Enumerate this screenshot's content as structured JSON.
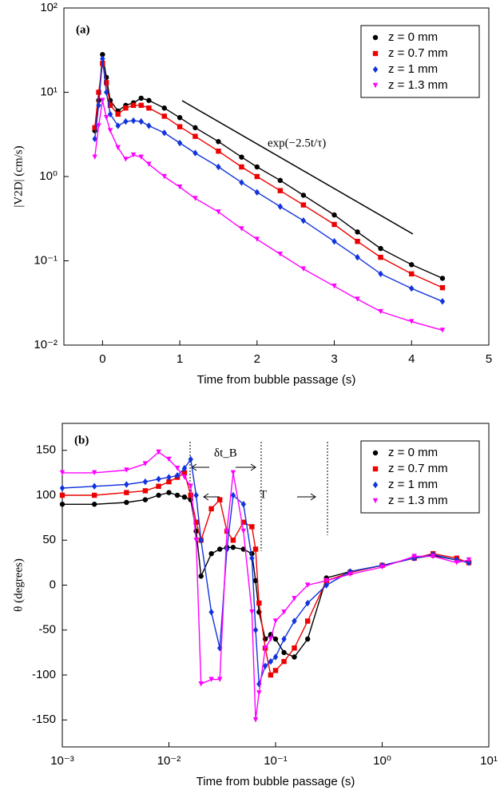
{
  "chart_data": [
    {
      "type": "line",
      "xlabel": "Time from bubble passage (s)",
      "ylabel": "|V2D| (cm/s)",
      "yscale": "log",
      "legend": "upper right",
      "annotations": [
        "(a)",
        "exp(−2.5t/τ)"
      ],
      "xlim": [
        -0.5,
        5
      ],
      "xticks": [
        0,
        1,
        2,
        3,
        4,
        5
      ],
      "ylim": [
        0.01,
        100
      ],
      "yticks": [
        {
          "value": 0.01,
          "label": "10⁻²"
        },
        {
          "value": 0.1,
          "label": "10⁻¹"
        },
        {
          "value": 1,
          "label": "10⁰"
        },
        {
          "value": 10,
          "label": "10¹"
        },
        {
          "value": 100,
          "label": "10²"
        }
      ],
      "x": [
        -0.1,
        -0.05,
        0,
        0.05,
        0.1,
        0.2,
        0.3,
        0.4,
        0.5,
        0.6,
        0.8,
        1.0,
        1.2,
        1.5,
        1.8,
        2.0,
        2.3,
        2.6,
        3.0,
        3.3,
        3.6,
        4.0,
        4.4
      ],
      "series": [
        {
          "name": "z = 0 mm",
          "color": "#000000",
          "marker": "circle",
          "values": [
            3.5,
            8,
            28,
            15,
            8,
            6,
            7,
            7.5,
            8.5,
            8,
            6.5,
            5,
            3.8,
            2.6,
            1.7,
            1.3,
            0.9,
            0.6,
            0.35,
            0.22,
            0.14,
            0.09,
            0.062
          ]
        },
        {
          "name": "z = 0.7 mm",
          "color": "#ee0000",
          "marker": "square",
          "values": [
            3.8,
            10,
            22,
            13,
            7,
            5.5,
            6.5,
            7,
            7,
            6.5,
            5.2,
            3.9,
            3,
            2,
            1.3,
            1,
            0.68,
            0.46,
            0.27,
            0.17,
            0.11,
            0.07,
            0.048
          ]
        },
        {
          "name": "z = 1 mm",
          "color": "#1133dd",
          "marker": "diamond",
          "values": [
            2.8,
            7,
            25,
            10,
            5.5,
            4,
            4.5,
            4.6,
            4.5,
            4,
            3.3,
            2.5,
            1.9,
            1.3,
            0.85,
            0.65,
            0.44,
            0.3,
            0.17,
            0.11,
            0.07,
            0.047,
            0.033
          ]
        },
        {
          "name": "z = 1.3 mm",
          "color": "#ff00ff",
          "marker": "triangle",
          "values": [
            1.7,
            4,
            8,
            5,
            3.5,
            2.2,
            1.6,
            1.8,
            1.7,
            1.4,
            1,
            0.75,
            0.55,
            0.38,
            0.24,
            0.18,
            0.12,
            0.08,
            0.05,
            0.035,
            0.025,
            0.019,
            0.015
          ]
        }
      ]
    },
    {
      "type": "line",
      "xlabel": "Time from bubble passage (s)",
      "ylabel": "θ (degrees)",
      "xscale": "log",
      "legend": "upper right",
      "annotations": [
        "(b)",
        "δt_B",
        "T"
      ],
      "xlim": [
        0.001,
        10
      ],
      "xticks": [
        {
          "value": 0.001,
          "label": "10⁻³"
        },
        {
          "value": 0.01,
          "label": "10⁻²"
        },
        {
          "value": 0.1,
          "label": "10⁻¹"
        },
        {
          "value": 1,
          "label": "10⁰"
        },
        {
          "value": 10,
          "label": "10¹"
        }
      ],
      "ylim": [
        -180,
        180
      ],
      "yticks": [
        -150,
        -100,
        -50,
        0,
        50,
        100,
        150
      ],
      "x": [
        0.001,
        0.002,
        0.004,
        0.006,
        0.008,
        0.01,
        0.012,
        0.014,
        0.016,
        0.018,
        0.02,
        0.025,
        0.03,
        0.035,
        0.04,
        0.05,
        0.06,
        0.065,
        0.07,
        0.08,
        0.09,
        0.1,
        0.12,
        0.15,
        0.2,
        0.3,
        0.5,
        1,
        2,
        3,
        5,
        6.5
      ],
      "series": [
        {
          "name": "z = 0 mm",
          "color": "#000000",
          "marker": "circle",
          "values": [
            90,
            90,
            92,
            95,
            100,
            103,
            100,
            98,
            95,
            60,
            10,
            35,
            40,
            42,
            42,
            40,
            35,
            5,
            -30,
            -60,
            -55,
            -60,
            -75,
            -80,
            -60,
            8,
            15,
            22,
            30,
            33,
            28,
            25
          ]
        },
        {
          "name": "z = 0.7 mm",
          "color": "#ee0000",
          "marker": "square",
          "values": [
            100,
            100,
            103,
            105,
            110,
            115,
            120,
            125,
            100,
            70,
            50,
            85,
            95,
            60,
            50,
            70,
            65,
            40,
            -20,
            -70,
            -100,
            -95,
            -85,
            -70,
            -40,
            5,
            14,
            22,
            30,
            35,
            30,
            25
          ]
        },
        {
          "name": "z = 1 mm",
          "color": "#1133dd",
          "marker": "diamond",
          "values": [
            108,
            110,
            112,
            115,
            118,
            120,
            122,
            130,
            140,
            100,
            50,
            -30,
            -70,
            40,
            100,
            90,
            30,
            -50,
            -110,
            -90,
            -85,
            -80,
            -60,
            -40,
            -20,
            0,
            15,
            22,
            30,
            34,
            28,
            25
          ]
        },
        {
          "name": "z = 1.3 mm",
          "color": "#ff00ff",
          "marker": "triangle",
          "values": [
            125,
            125,
            128,
            135,
            148,
            140,
            130,
            120,
            110,
            50,
            -110,
            -105,
            -105,
            60,
            125,
            60,
            -30,
            -150,
            -120,
            -70,
            -60,
            -40,
            -30,
            -15,
            0,
            5,
            12,
            20,
            32,
            32,
            25,
            28
          ]
        }
      ]
    }
  ]
}
